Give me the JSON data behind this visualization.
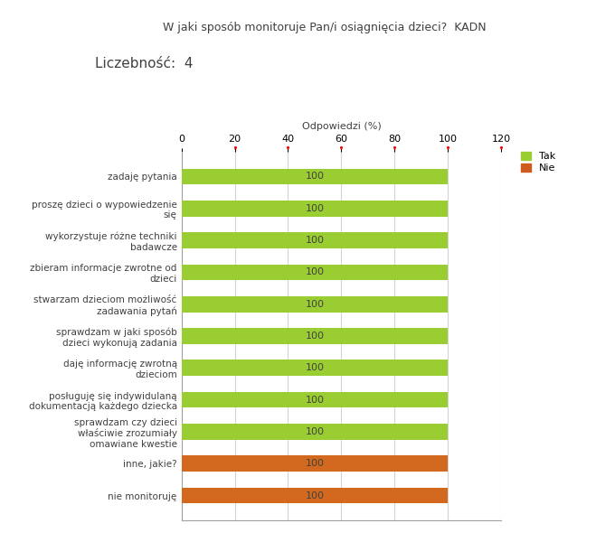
{
  "title": "W jaki sposób monitoruje Pan/i osiągnięcia dzieci?  KADN",
  "subtitle": "Liczebność:  4",
  "xlabel": "Odpowiedzi (%)",
  "categories": [
    "nie monitoruję",
    "inne, jakie?",
    "sprawdzam czy dzieci\nwłaściwie zrozumiały\nomawiane kwestie",
    "posługuję się indywidulaną\ndokumentacją każdego dziecka",
    "daję informację zwrotną\ndzieciom",
    "sprawdzam w jaki sposób\ndzieci wykonują zadania",
    "stwarzam dzieciom możliwość\nzadawania pytań",
    "zbieram informacje zwrotne od\ndzieci",
    "wykorzystuje różne techniki\nbadawcze",
    "proszę dzieci o wypowiedzenie\nsię",
    "zadaję pytania"
  ],
  "values": [
    100,
    100,
    100,
    100,
    100,
    100,
    100,
    100,
    100,
    100,
    100
  ],
  "colors": [
    "#d2691e",
    "#d2691e",
    "#9acd32",
    "#9acd32",
    "#9acd32",
    "#9acd32",
    "#9acd32",
    "#9acd32",
    "#9acd32",
    "#9acd32",
    "#9acd32"
  ],
  "bar_color_tak": "#9acd32",
  "bar_color_nie": "#cd5c1e",
  "xlim": [
    0,
    120
  ],
  "xticks": [
    0,
    20,
    40,
    60,
    80,
    100,
    120
  ],
  "legend_tak": "Tak",
  "legend_nie": "Nie",
  "grid_color": "#d3d3d3",
  "bar_height": 0.5,
  "bg_color": "#ffffff",
  "text_color": "#404040",
  "font_size_title": 9,
  "font_size_subtitle": 11,
  "font_size_labels": 7.5,
  "font_size_bar_label": 8,
  "font_size_axis": 8
}
